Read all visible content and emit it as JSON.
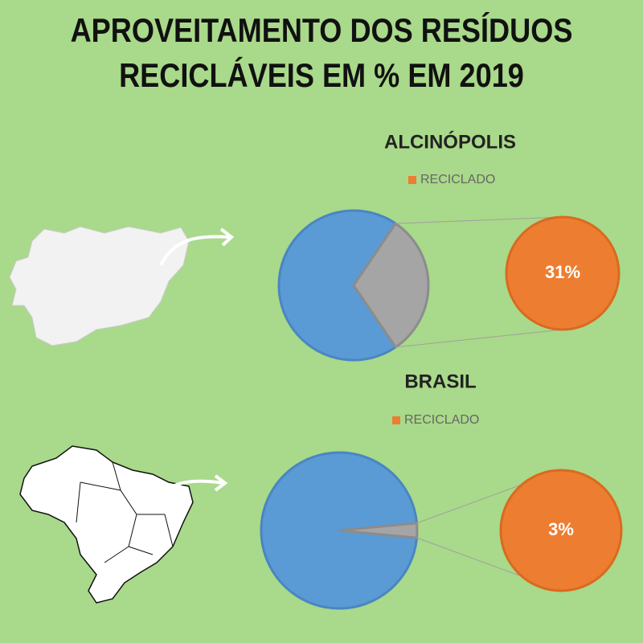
{
  "title": "APROVEITAMENTO DOS RESÍDUOS RECICLÁVEIS EM % EM 2019",
  "chart_data": [
    {
      "type": "pie",
      "title": "ALCINÓPOLIS",
      "categories": [
        null,
        "RECICLADO"
      ],
      "values": [
        69,
        31
      ],
      "value_labels": [
        null,
        "31%"
      ],
      "colors": [
        "#5b9bd5",
        "#a5a5a5"
      ],
      "detail_color": "#ed7d31"
    },
    {
      "type": "pie",
      "title": "BRASIL",
      "categories": [
        null,
        "RECICLADO"
      ],
      "values": [
        97,
        3
      ],
      "value_labels": [
        null,
        "3%"
      ],
      "colors": [
        "#5b9bd5",
        "#a5a5a5"
      ],
      "detail_color": "#ed7d31"
    }
  ]
}
